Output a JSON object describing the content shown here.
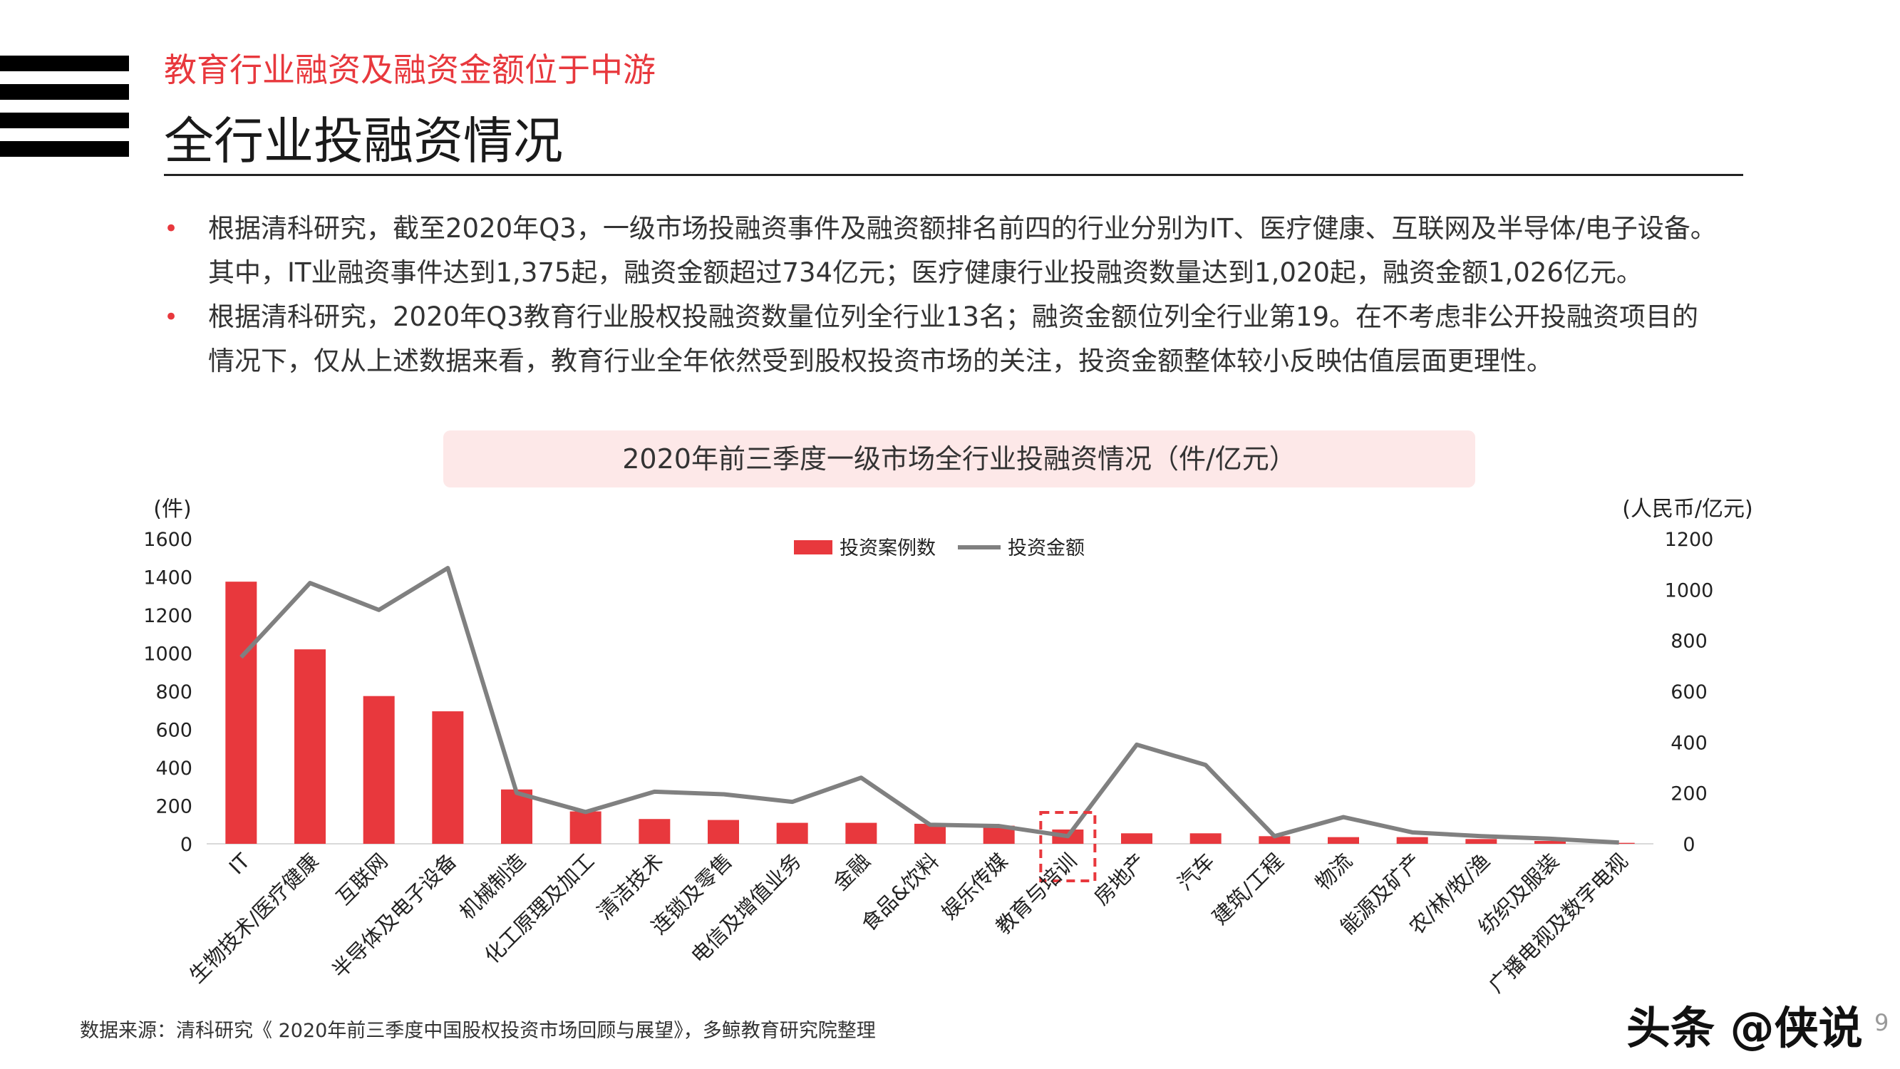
{
  "header": {
    "subtitle": "教育行业融资及融资金额位于中游",
    "title": "全行业投融资情况"
  },
  "bullets": [
    {
      "line1": "根据清科研究，截至2020年Q3，一级市场投融资事件及融资额排名前四的行业分别为IT、医疗健康、互联网及半导体/电子设备。",
      "line2": "其中，IT业融资事件达到1,375起，融资金额超过734亿元；医疗健康行业投融资数量达到1,020起，融资金额1,026亿元。"
    },
    {
      "line1": "根据清科研究，2020年Q3教育行业股权投融资数量位列全行业13名；融资金额位列全行业第19。在不考虑非公开投融资项目的",
      "line2": "情况下，仅从上述数据来看，教育行业全年依然受到股权投资市场的关注，投资金额整体较小反映估值层面更理性。"
    }
  ],
  "chart_data": {
    "type": "bar",
    "title": "2020年前三季度一级市场全行业投融资情况（件/亿元）",
    "y_left_unit": "(件)",
    "y_right_unit": "(人民币/亿元)",
    "ylim_left": [
      0,
      1600
    ],
    "ylim_right": [
      0,
      1200
    ],
    "yticks_left": [
      "0",
      "200",
      "400",
      "600",
      "800",
      "1000",
      "1200",
      "1400",
      "1600"
    ],
    "yticks_right": [
      "0",
      "200",
      "400",
      "600",
      "800",
      "1000",
      "1200"
    ],
    "legend": {
      "placement": "top-center",
      "bar_label": "投资案例数",
      "line_label": "投资金额"
    },
    "categories": [
      "IT",
      "生物技术/医疗健康",
      "互联网",
      "半导体及电子设备",
      "机械制造",
      "化工原理及加工",
      "清洁技术",
      "连锁及零售",
      "电信及增值业务",
      "金融",
      "食品&饮料",
      "娱乐传媒",
      "教育与培训",
      "房地产",
      "汽车",
      "建筑/工程",
      "物流",
      "能源及矿产",
      "农/林/牧/渔",
      "纺织及服装",
      "广播电视及数字电视"
    ],
    "series": [
      {
        "name": "投资案例数",
        "type": "bar",
        "axis": "left",
        "color": "#e8383d",
        "values": [
          1375,
          1020,
          775,
          695,
          285,
          170,
          130,
          125,
          110,
          110,
          105,
          95,
          75,
          55,
          55,
          40,
          35,
          35,
          25,
          15,
          5
        ]
      },
      {
        "name": "投资金额",
        "type": "line",
        "axis": "right",
        "color": "#808080",
        "values": [
          734,
          1026,
          920,
          1085,
          200,
          125,
          205,
          195,
          165,
          260,
          75,
          70,
          30,
          390,
          310,
          30,
          105,
          45,
          30,
          20,
          5
        ]
      }
    ],
    "highlighted_category": "教育与培训",
    "grid": false
  },
  "footer": {
    "source": "数据来源：清科研究《 2020年前三季度中国股权投资市场回顾与展望》，多鲸教育研究院整理",
    "watermark": "头条 @侠说",
    "page": "9"
  }
}
